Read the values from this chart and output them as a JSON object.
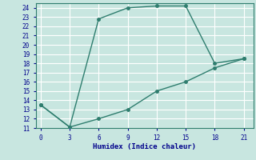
{
  "line1_x": [
    0,
    3,
    6,
    9,
    12,
    15,
    18,
    21
  ],
  "line1_y": [
    13.5,
    11.1,
    22.8,
    24.0,
    24.2,
    24.2,
    18.0,
    18.5
  ],
  "line2_x": [
    0,
    3,
    6,
    9,
    12,
    15,
    18,
    21
  ],
  "line2_y": [
    13.5,
    11.1,
    12.0,
    13.0,
    15.0,
    16.0,
    17.5,
    18.5
  ],
  "line_color": "#2e7d6e",
  "bg_color": "#c8e6e0",
  "grid_color": "#ffffff",
  "xlabel": "Humidex (Indice chaleur)",
  "xlim": [
    -0.5,
    22
  ],
  "ylim": [
    11,
    24.5
  ],
  "xticks": [
    0,
    3,
    6,
    9,
    12,
    15,
    18,
    21
  ],
  "yticks": [
    11,
    12,
    13,
    14,
    15,
    16,
    17,
    18,
    19,
    20,
    21,
    22,
    23,
    24
  ],
  "xlabel_fontsize": 6.5,
  "tick_fontsize": 5.5,
  "xlabel_color": "#00008b",
  "tick_color": "#00008b"
}
